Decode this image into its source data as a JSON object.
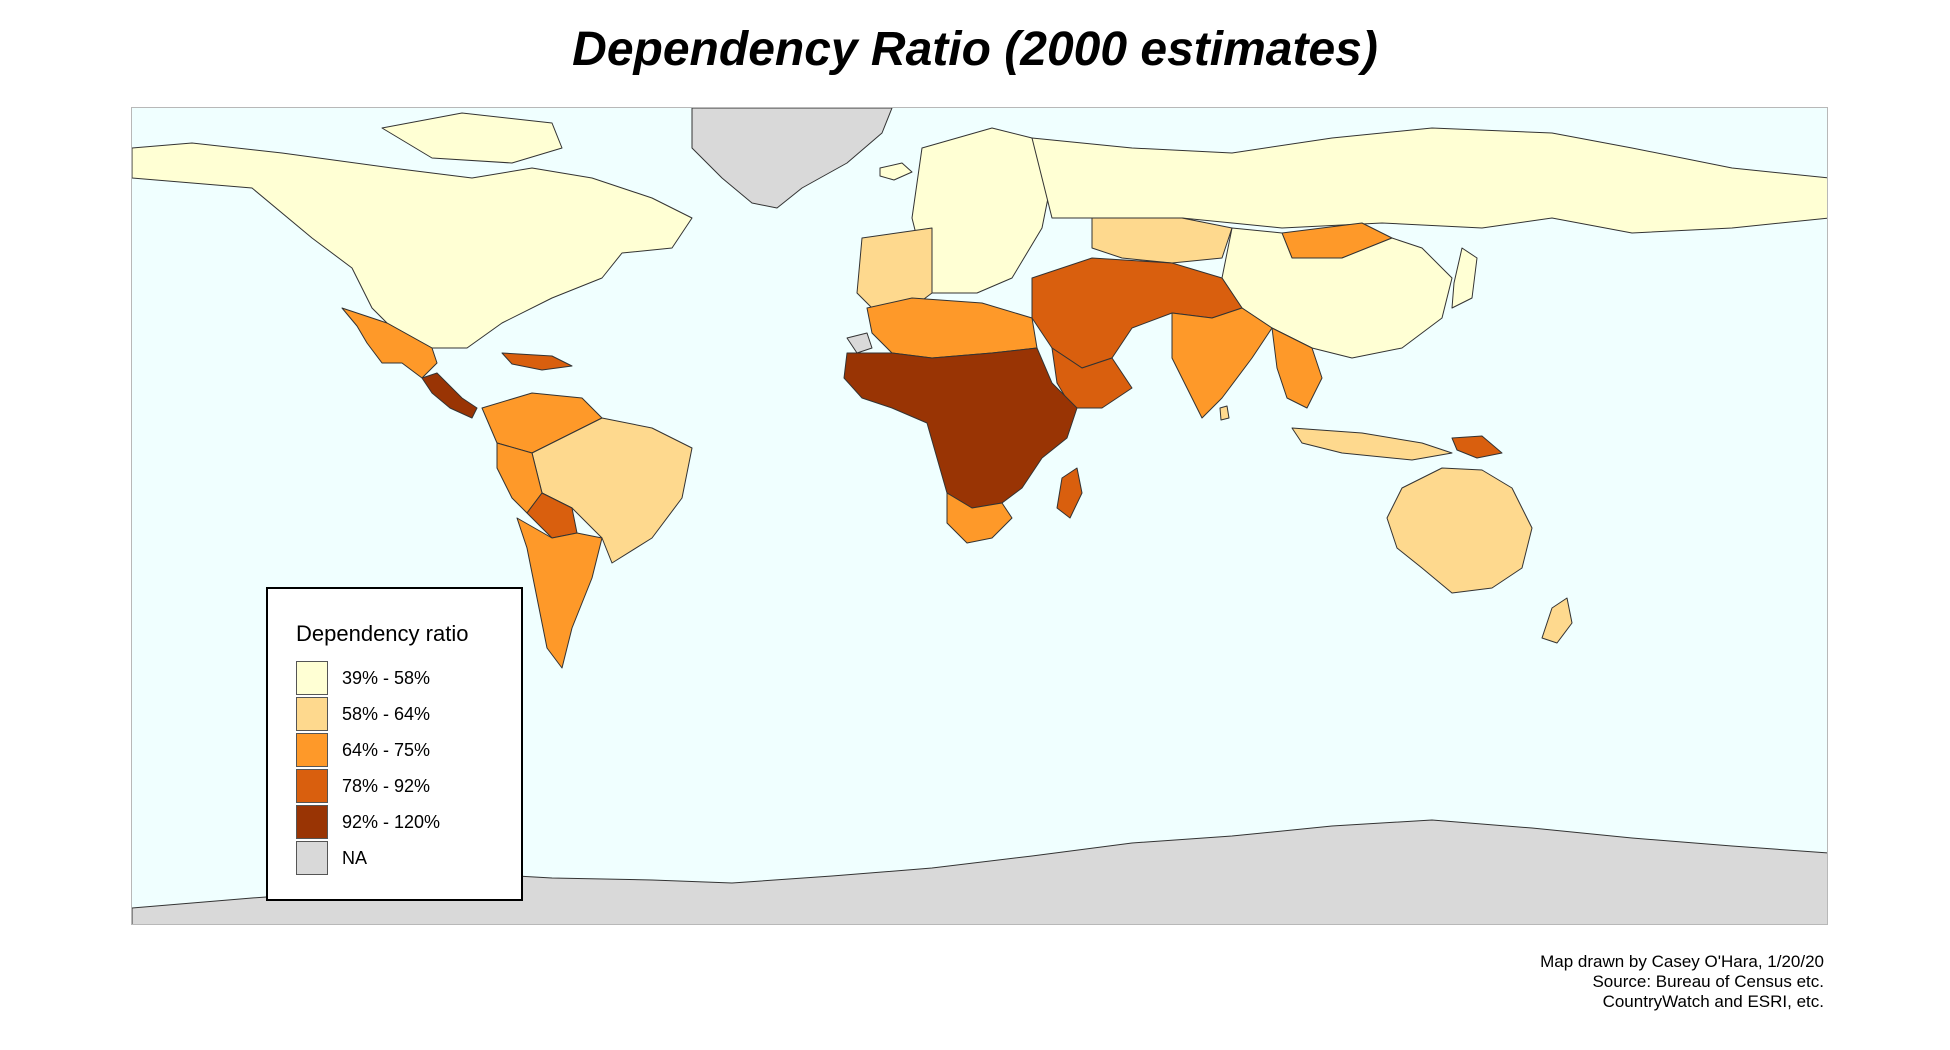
{
  "title": "Dependency Ratio (2000 estimates)",
  "colors": {
    "ocean": "#f0ffff",
    "c1": "#ffffd4",
    "c2": "#fed98e",
    "c3": "#fe9929",
    "c4": "#d95f0e",
    "c5": "#993404",
    "na": "#d9d9d9",
    "border": "#333333"
  },
  "legend": {
    "title": "Dependency ratio",
    "items": [
      {
        "label": "39% - 58%",
        "color": "#ffffd4"
      },
      {
        "label": "58% - 64%",
        "color": "#fed98e"
      },
      {
        "label": "64% - 75%",
        "color": "#fe9929"
      },
      {
        "label": "78% - 92%",
        "color": "#d95f0e"
      },
      {
        "label": "92% - 120%",
        "color": "#993404"
      },
      {
        "label": "NA",
        "color": "#d9d9d9"
      }
    ]
  },
  "credits": {
    "line1": "Map drawn by Casey O'Hara, 1/20/20",
    "line2": "Source: Bureau of Census etc.",
    "line3": "CountryWatch and ESRI, etc."
  }
}
